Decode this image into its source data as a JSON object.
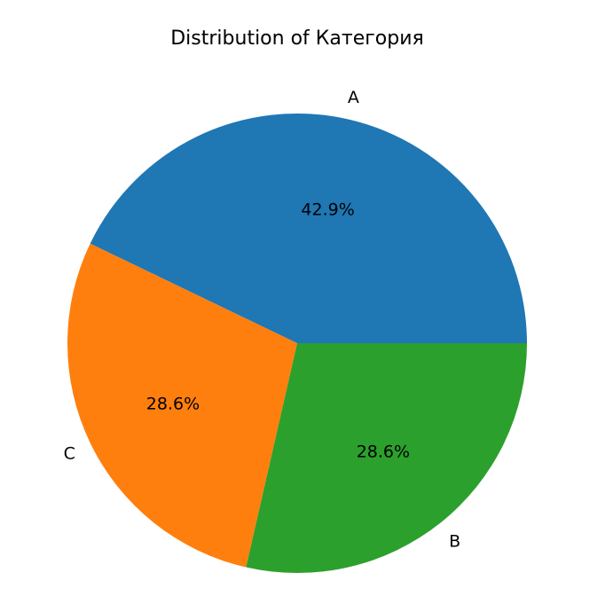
{
  "chart_data": {
    "type": "pie",
    "title": "Distribution of Категория",
    "slices": [
      {
        "label": "A",
        "value": 42.9,
        "pct_label": "42.9%",
        "color": "#1f77b4"
      },
      {
        "label": "B",
        "value": 28.6,
        "pct_label": "28.6%",
        "color": "#2ca02c"
      },
      {
        "label": "C",
        "value": 28.6,
        "pct_label": "28.6%",
        "color": "#ff7f0e"
      }
    ]
  }
}
